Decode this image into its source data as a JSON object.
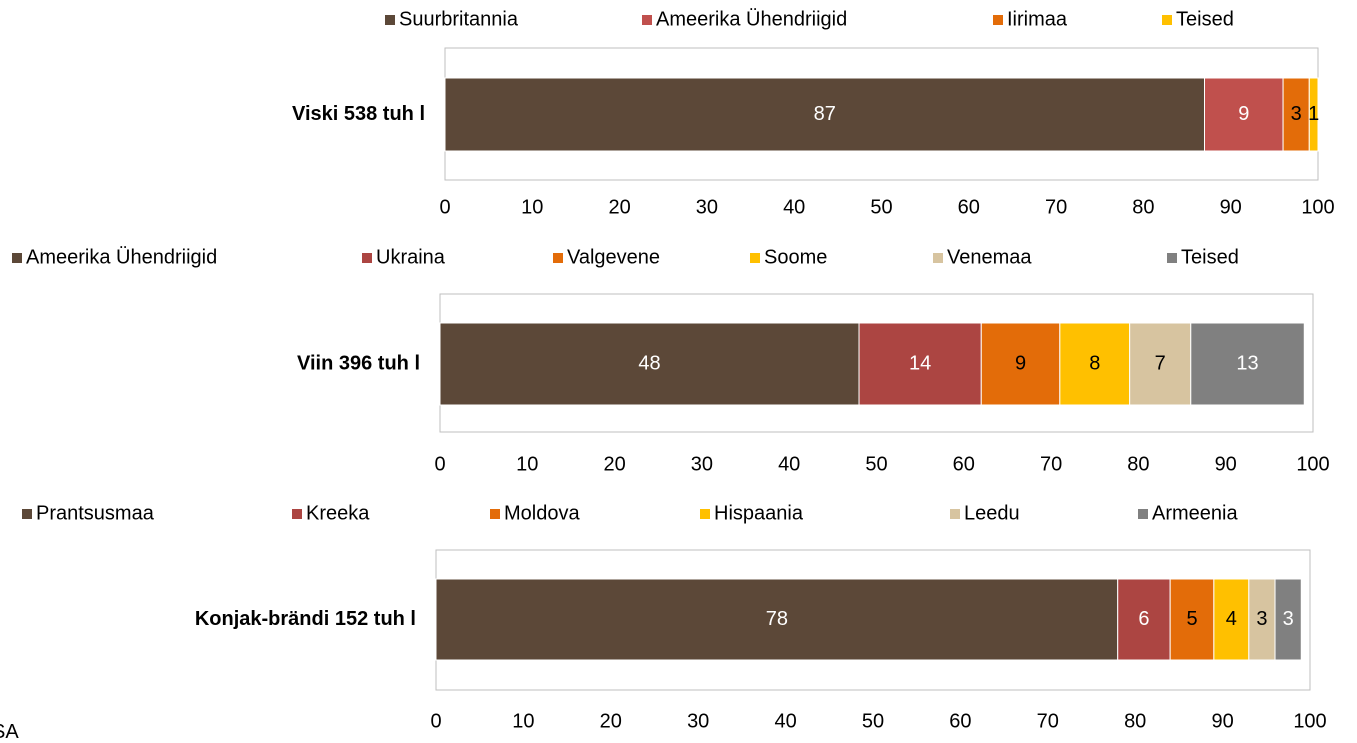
{
  "chart_data": [
    {
      "type": "bar",
      "orientation": "horizontal",
      "stacked": true,
      "categories": [
        "Viski 538 tuh l"
      ],
      "series": [
        {
          "name": "Suurbritannia",
          "color": "#5c4838",
          "values": [
            87
          ]
        },
        {
          "name": "Ameerika Ühendriigid",
          "color": "#c0504d",
          "values": [
            9
          ]
        },
        {
          "name": "Iirimaa",
          "color": "#e36c09",
          "values": [
            3
          ]
        },
        {
          "name": "Teised",
          "color": "#ffc000",
          "values": [
            1
          ]
        }
      ],
      "xlim": [
        0,
        100
      ],
      "xticks": [
        0,
        10,
        20,
        30,
        40,
        50,
        60,
        70,
        80,
        90,
        100
      ],
      "legend": "top"
    },
    {
      "type": "bar",
      "orientation": "horizontal",
      "stacked": true,
      "categories": [
        "Viin 396 tuh l"
      ],
      "series": [
        {
          "name": "Ameerika Ühendriigid",
          "color": "#5c4838",
          "values": [
            48
          ]
        },
        {
          "name": "Ukraina",
          "color": "#ac4542",
          "values": [
            14
          ]
        },
        {
          "name": "Valgevene",
          "color": "#e36c09",
          "values": [
            9
          ]
        },
        {
          "name": "Soome",
          "color": "#ffc000",
          "values": [
            8
          ]
        },
        {
          "name": "Venemaa",
          "color": "#d7c4a0",
          "values": [
            7
          ]
        },
        {
          "name": "Teised",
          "color": "#808080",
          "values": [
            13
          ]
        }
      ],
      "xlim": [
        0,
        100
      ],
      "xticks": [
        0,
        10,
        20,
        30,
        40,
        50,
        60,
        70,
        80,
        90,
        100
      ],
      "legend": "top"
    },
    {
      "type": "bar",
      "orientation": "horizontal",
      "stacked": true,
      "categories": [
        "Konjak-brändi 152 tuh l"
      ],
      "series": [
        {
          "name": "Prantsusmaa",
          "color": "#5c4838",
          "values": [
            78
          ]
        },
        {
          "name": "Kreeka",
          "color": "#ac4542",
          "values": [
            6
          ]
        },
        {
          "name": "Moldova",
          "color": "#e36c09",
          "values": [
            5
          ]
        },
        {
          "name": "Hispaania",
          "color": "#ffc000",
          "values": [
            4
          ]
        },
        {
          "name": "Leedu",
          "color": "#d7c4a0",
          "values": [
            3
          ]
        },
        {
          "name": "Armeenia",
          "color": "#808080",
          "values": [
            3
          ]
        }
      ],
      "xlim": [
        0,
        100
      ],
      "xticks": [
        0,
        10,
        20,
        30,
        40,
        50,
        60,
        70,
        80,
        90,
        100
      ],
      "legend": "top"
    }
  ],
  "source": "SA"
}
